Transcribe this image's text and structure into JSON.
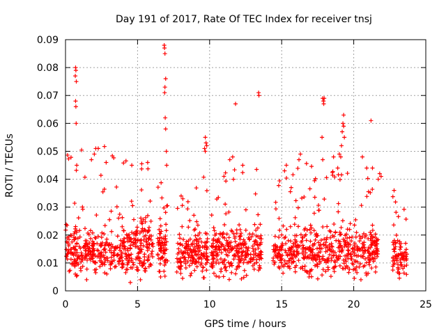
{
  "chart_data": {
    "type": "scatter",
    "title": "Day 191 of 2017, Rate Of TEC Index for receiver tnsj",
    "xlabel": "GPS time / hours",
    "ylabel": "ROTI / TECUs",
    "xlim": [
      0,
      25
    ],
    "ylim": [
      0,
      0.09
    ],
    "xticks": [
      0,
      5,
      10,
      15,
      20,
      25
    ],
    "xtick_labels": [
      "0",
      "5",
      "10",
      "15",
      "20",
      "25"
    ],
    "yticks": [
      0,
      0.01,
      0.02,
      0.03,
      0.04,
      0.05,
      0.06,
      0.07,
      0.08,
      0.09
    ],
    "ytick_labels": [
      "0",
      "0.01",
      "0.02",
      "0.03",
      "0.04",
      "0.05",
      "0.06",
      "0.07",
      "0.08",
      "0.09"
    ],
    "grid": true,
    "marker": "plus",
    "color": "#ff0000",
    "series": [
      {
        "name": "ROTI",
        "segments": [
          {
            "x": [
              0.0,
              4.4
            ],
            "base": 0.014,
            "spread": 0.011,
            "max": 0.052,
            "density": 320
          },
          {
            "x": [
              4.4,
              6.1
            ],
            "base": 0.016,
            "spread": 0.012,
            "max": 0.046,
            "density": 140
          },
          {
            "x": [
              6.4,
              7.1
            ],
            "base": 0.015,
            "spread": 0.011,
            "max": 0.04,
            "density": 70
          },
          {
            "x": [
              7.7,
              9.9
            ],
            "base": 0.013,
            "spread": 0.01,
            "max": 0.041,
            "density": 170
          },
          {
            "x": [
              10.1,
              13.6
            ],
            "base": 0.014,
            "spread": 0.011,
            "max": 0.044,
            "density": 270
          },
          {
            "x": [
              14.4,
              21.7
            ],
            "base": 0.014,
            "spread": 0.011,
            "max": 0.046,
            "density": 520
          },
          {
            "x": [
              22.7,
              23.7
            ],
            "base": 0.012,
            "spread": 0.009,
            "max": 0.036,
            "density": 80
          }
        ],
        "outliers": [
          {
            "x": 0.7,
            "y": 0.08
          },
          {
            "x": 0.72,
            "y": 0.079
          },
          {
            "x": 0.68,
            "y": 0.077
          },
          {
            "x": 0.75,
            "y": 0.075
          },
          {
            "x": 0.7,
            "y": 0.068
          },
          {
            "x": 0.72,
            "y": 0.066
          },
          {
            "x": 0.74,
            "y": 0.06
          },
          {
            "x": 0.78,
            "y": 0.045
          },
          {
            "x": 6.85,
            "y": 0.088
          },
          {
            "x": 6.87,
            "y": 0.087
          },
          {
            "x": 6.9,
            "y": 0.085
          },
          {
            "x": 6.95,
            "y": 0.076
          },
          {
            "x": 6.9,
            "y": 0.073
          },
          {
            "x": 6.88,
            "y": 0.071
          },
          {
            "x": 6.92,
            "y": 0.062
          },
          {
            "x": 6.95,
            "y": 0.058
          },
          {
            "x": 7.0,
            "y": 0.05
          },
          {
            "x": 7.02,
            "y": 0.045
          },
          {
            "x": 9.7,
            "y": 0.055
          },
          {
            "x": 9.75,
            "y": 0.053
          },
          {
            "x": 9.8,
            "y": 0.052
          },
          {
            "x": 9.65,
            "y": 0.051
          },
          {
            "x": 9.7,
            "y": 0.05
          },
          {
            "x": 11.8,
            "y": 0.067
          },
          {
            "x": 13.4,
            "y": 0.071
          },
          {
            "x": 13.42,
            "y": 0.07
          },
          {
            "x": 17.85,
            "y": 0.069
          },
          {
            "x": 17.9,
            "y": 0.068
          },
          {
            "x": 17.95,
            "y": 0.069
          },
          {
            "x": 17.92,
            "y": 0.067
          },
          {
            "x": 17.8,
            "y": 0.055
          },
          {
            "x": 17.85,
            "y": 0.047
          },
          {
            "x": 19.3,
            "y": 0.063
          },
          {
            "x": 19.25,
            "y": 0.06
          },
          {
            "x": 19.3,
            "y": 0.059
          },
          {
            "x": 19.2,
            "y": 0.057
          },
          {
            "x": 19.35,
            "y": 0.055
          },
          {
            "x": 19.15,
            "y": 0.052
          },
          {
            "x": 19.0,
            "y": 0.049
          },
          {
            "x": 19.1,
            "y": 0.048
          },
          {
            "x": 21.2,
            "y": 0.061
          },
          {
            "x": 21.8,
            "y": 0.042
          },
          {
            "x": 21.9,
            "y": 0.041
          },
          {
            "x": 21.7,
            "y": 0.04
          },
          {
            "x": 21.3,
            "y": 0.044
          },
          {
            "x": 11.6,
            "y": 0.048
          },
          {
            "x": 11.4,
            "y": 0.047
          },
          {
            "x": 2.1,
            "y": 0.051
          },
          {
            "x": 2.0,
            "y": 0.049
          },
          {
            "x": 1.8,
            "y": 0.047
          },
          {
            "x": 5.7,
            "y": 0.046
          },
          {
            "x": 4.6,
            "y": 0.045
          },
          {
            "x": 16.3,
            "y": 0.049
          },
          {
            "x": 16.2,
            "y": 0.047
          },
          {
            "x": 18.6,
            "y": 0.048
          },
          {
            "x": 20.6,
            "y": 0.048
          },
          {
            "x": 20.9,
            "y": 0.044
          },
          {
            "x": 22.8,
            "y": 0.036
          },
          {
            "x": 15.2,
            "y": 0.043
          },
          {
            "x": 12.3,
            "y": 0.045
          },
          {
            "x": 4.5,
            "y": 0.003
          },
          {
            "x": 5.2,
            "y": 0.004
          },
          {
            "x": 20.5,
            "y": 0.004
          },
          {
            "x": 6.6,
            "y": 0.005
          },
          {
            "x": 16.9,
            "y": 0.005
          }
        ]
      }
    ]
  }
}
